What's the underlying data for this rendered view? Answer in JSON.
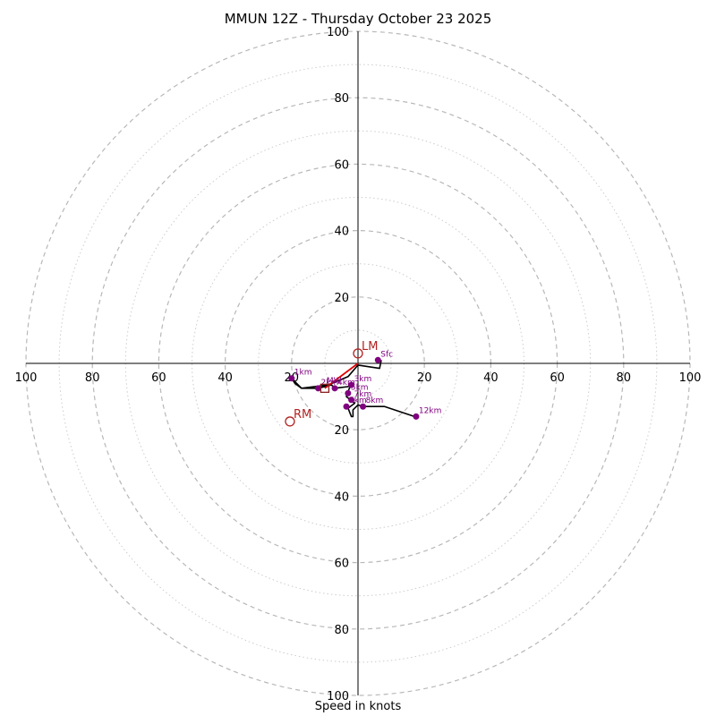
{
  "chart_data": {
    "type": "hodograph",
    "title": "MMUN 12Z - Thursday October 23 2025",
    "xlabel": "Speed in knots",
    "range": 100,
    "ring_step": 20,
    "tick_labels": {
      "x": [
        "100",
        "80",
        "60",
        "40",
        "20",
        "20",
        "40",
        "60",
        "80",
        "100"
      ],
      "y": [
        "100",
        "80",
        "60",
        "40",
        "20",
        "20",
        "40",
        "60",
        "80",
        "100"
      ]
    },
    "trace_color": "#000000",
    "marker_color": "#800080",
    "motion_color": "#b22222",
    "shear_color": "#e00000",
    "trace": [
      [
        7,
        1
      ],
      [
        6.5,
        -1.5
      ],
      [
        0,
        -0.5
      ],
      [
        -3,
        -4
      ],
      [
        -9,
        -6.5
      ],
      [
        -17,
        -7.5
      ],
      [
        -20,
        -4.5
      ],
      [
        -19,
        -6
      ],
      [
        -17,
        -7.5
      ],
      [
        -12,
        -7.5
      ],
      [
        -8,
        -6.5
      ],
      [
        -7,
        -7.5
      ],
      [
        -3,
        -7
      ],
      [
        -2,
        -6
      ],
      [
        -3,
        -8.5
      ],
      [
        -3.5,
        -10
      ],
      [
        -1,
        -12
      ],
      [
        -3,
        -13.5
      ],
      [
        -2,
        -16
      ],
      [
        -1.5,
        -16
      ],
      [
        -1.5,
        -14
      ],
      [
        0,
        -12.5
      ],
      [
        1.5,
        -13
      ],
      [
        8,
        -13
      ],
      [
        17,
        -16
      ],
      [
        18,
        -16
      ]
    ],
    "height_markers": [
      {
        "label": "Sfc",
        "u": 6,
        "v": 1
      },
      {
        "label": "1km",
        "u": -20,
        "v": -4.5
      },
      {
        "label": "2km",
        "u": -12,
        "v": -7.5
      },
      {
        "label": "3km",
        "u": -2,
        "v": -6.5
      },
      {
        "label": "4km",
        "u": -7,
        "v": -7.5
      },
      {
        "label": "5km",
        "u": -3,
        "v": -9
      },
      {
        "label": "6km",
        "u": -3.5,
        "v": -13
      },
      {
        "label": "7km",
        "u": -2,
        "v": -11
      },
      {
        "label": "8km",
        "u": 1.5,
        "v": -13
      },
      {
        "label": "12km",
        "u": 17.5,
        "v": -16
      }
    ],
    "storm_motion": [
      {
        "label": "LM",
        "u": 0,
        "v": 3
      },
      {
        "label": "RM",
        "u": -20.5,
        "v": -17.5
      }
    ],
    "mean_wind": {
      "label": "MW",
      "u": -10,
      "v": -7.5
    },
    "shear_vector": {
      "from": [
        0,
        0
      ],
      "to": [
        -10,
        -7.5
      ]
    }
  }
}
